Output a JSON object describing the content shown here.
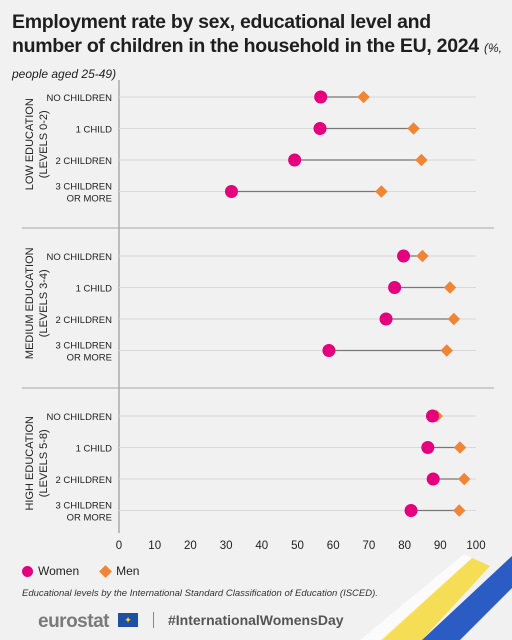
{
  "title": {
    "main": "Employment rate by sex, educational level and number of children in the household in the EU, 2024",
    "subtitle": "(%, people aged 25-49)"
  },
  "chart_data": {
    "type": "scatter",
    "subtype": "dot-plot",
    "xlim": [
      0,
      100
    ],
    "x_ticks": [
      0,
      10,
      20,
      30,
      40,
      50,
      60,
      70,
      80,
      90,
      100
    ],
    "groups": [
      {
        "label": [
          "LOW EDUCATION",
          "(LEVELS 0-2)"
        ],
        "rows": [
          {
            "label": [
              "NO CHILDREN"
            ],
            "women": 56.5,
            "men": 68.5
          },
          {
            "label": [
              "1 CHILD"
            ],
            "women": 56.3,
            "men": 82.5
          },
          {
            "label": [
              "2 CHILDREN"
            ],
            "women": 49.2,
            "men": 84.7
          },
          {
            "label": [
              "3 CHILDREN",
              "OR MORE"
            ],
            "women": 31.5,
            "men": 73.5
          }
        ]
      },
      {
        "label": [
          "MEDIUM EDUCATION",
          "(LEVELS 3-4)"
        ],
        "rows": [
          {
            "label": [
              "NO CHILDREN"
            ],
            "women": 79.7,
            "men": 85.0
          },
          {
            "label": [
              "1 CHILD"
            ],
            "women": 77.2,
            "men": 92.7
          },
          {
            "label": [
              "2 CHILDREN"
            ],
            "women": 74.8,
            "men": 93.8
          },
          {
            "label": [
              "3 CHILDREN",
              "OR MORE"
            ],
            "women": 58.8,
            "men": 91.8
          }
        ]
      },
      {
        "label": [
          "HIGH EDUCATION",
          "(LEVELS 5-8)"
        ],
        "rows": [
          {
            "label": [
              "NO CHILDREN"
            ],
            "women": 87.8,
            "men": 89.0
          },
          {
            "label": [
              "1 CHILD"
            ],
            "women": 86.5,
            "men": 95.5
          },
          {
            "label": [
              "2 CHILDREN"
            ],
            "women": 88.0,
            "men": 96.7
          },
          {
            "label": [
              "3 CHILDREN",
              "OR MORE"
            ],
            "women": 81.8,
            "men": 95.3
          }
        ]
      }
    ],
    "series": [
      {
        "name": "Women",
        "key": "women",
        "color": "#e5007d",
        "marker": "circle"
      },
      {
        "name": "Men",
        "key": "men",
        "color": "#f08535",
        "marker": "diamond"
      }
    ],
    "legend_position": "bottom-left",
    "grid": false
  },
  "legend": {
    "women": "Women",
    "men": "Men"
  },
  "note": "Educational levels by the  International Standard Classification of Education (ISCED).",
  "footer": {
    "logo": "eurostat",
    "flag_icon": "eu-flag-icon",
    "hashtag": "#InternationalWomensDay"
  }
}
